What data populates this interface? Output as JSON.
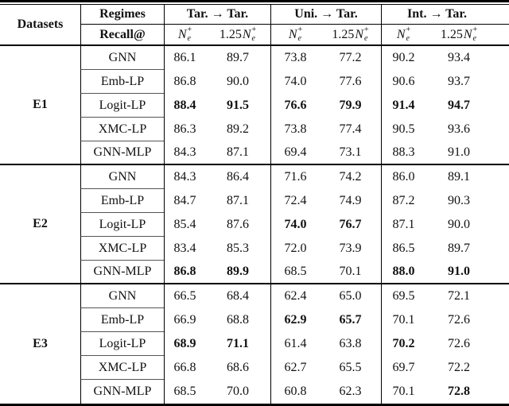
{
  "page": {
    "bg": "#ffffff",
    "rule_color": "#000000",
    "cline_color": "#555555",
    "text_color": "#111111"
  },
  "header": {
    "datasets": "Datasets",
    "regimes": "Regimes",
    "recall": "Recall@",
    "groups": [
      {
        "label": "Tar. → Tar."
      },
      {
        "label": "Uni. → Tar."
      },
      {
        "label": "Int. → Tar."
      }
    ],
    "metric": {
      "factor": "1.25",
      "base": "N",
      "sub": "e",
      "sup": "+"
    }
  },
  "blocks": [
    {
      "dataset": "E1",
      "rows": [
        {
          "regime": "GNN",
          "values": [
            "86.1",
            "89.7",
            "73.8",
            "77.2",
            "90.2",
            "93.4"
          ],
          "bold": [
            0,
            0,
            0,
            0,
            0,
            0
          ]
        },
        {
          "regime": "Emb-LP",
          "values": [
            "86.8",
            "90.0",
            "74.0",
            "77.6",
            "90.6",
            "93.7"
          ],
          "bold": [
            0,
            0,
            0,
            0,
            0,
            0
          ]
        },
        {
          "regime": "Logit-LP",
          "values": [
            "88.4",
            "91.5",
            "76.6",
            "79.9",
            "91.4",
            "94.7"
          ],
          "bold": [
            1,
            1,
            1,
            1,
            1,
            1
          ]
        },
        {
          "regime": "XMC-LP",
          "values": [
            "86.3",
            "89.2",
            "73.8",
            "77.4",
            "90.5",
            "93.6"
          ],
          "bold": [
            0,
            0,
            0,
            0,
            0,
            0
          ]
        },
        {
          "regime": "GNN-MLP",
          "values": [
            "84.3",
            "87.1",
            "69.4",
            "73.1",
            "88.3",
            "91.0"
          ],
          "bold": [
            0,
            0,
            0,
            0,
            0,
            0
          ]
        }
      ]
    },
    {
      "dataset": "E2",
      "rows": [
        {
          "regime": "GNN",
          "values": [
            "84.3",
            "86.4",
            "71.6",
            "74.2",
            "86.0",
            "89.1"
          ],
          "bold": [
            0,
            0,
            0,
            0,
            0,
            0
          ]
        },
        {
          "regime": "Emb-LP",
          "values": [
            "84.7",
            "87.1",
            "72.4",
            "74.9",
            "87.2",
            "90.3"
          ],
          "bold": [
            0,
            0,
            0,
            0,
            0,
            0
          ]
        },
        {
          "regime": "Logit-LP",
          "values": [
            "85.4",
            "87.6",
            "74.0",
            "76.7",
            "87.1",
            "90.0"
          ],
          "bold": [
            0,
            0,
            1,
            1,
            0,
            0
          ]
        },
        {
          "regime": "XMC-LP",
          "values": [
            "83.4",
            "85.3",
            "72.0",
            "73.9",
            "86.5",
            "89.7"
          ],
          "bold": [
            0,
            0,
            0,
            0,
            0,
            0
          ]
        },
        {
          "regime": "GNN-MLP",
          "values": [
            "86.8",
            "89.9",
            "68.5",
            "70.1",
            "88.0",
            "91.0"
          ],
          "bold": [
            1,
            1,
            0,
            0,
            1,
            1
          ]
        }
      ]
    },
    {
      "dataset": "E3",
      "rows": [
        {
          "regime": "GNN",
          "values": [
            "66.5",
            "68.4",
            "62.4",
            "65.0",
            "69.5",
            "72.1"
          ],
          "bold": [
            0,
            0,
            0,
            0,
            0,
            0
          ]
        },
        {
          "regime": "Emb-LP",
          "values": [
            "66.9",
            "68.8",
            "62.9",
            "65.7",
            "70.1",
            "72.6"
          ],
          "bold": [
            0,
            0,
            1,
            1,
            0,
            0
          ]
        },
        {
          "regime": "Logit-LP",
          "values": [
            "68.9",
            "71.1",
            "61.4",
            "63.8",
            "70.2",
            "72.6"
          ],
          "bold": [
            1,
            1,
            0,
            0,
            1,
            0
          ]
        },
        {
          "regime": "XMC-LP",
          "values": [
            "66.8",
            "68.6",
            "62.7",
            "65.5",
            "69.7",
            "72.2"
          ],
          "bold": [
            0,
            0,
            0,
            0,
            0,
            0
          ]
        },
        {
          "regime": "GNN-MLP",
          "values": [
            "68.5",
            "70.0",
            "60.8",
            "62.3",
            "70.1",
            "72.8"
          ],
          "bold": [
            0,
            0,
            0,
            0,
            0,
            1
          ]
        }
      ]
    }
  ]
}
